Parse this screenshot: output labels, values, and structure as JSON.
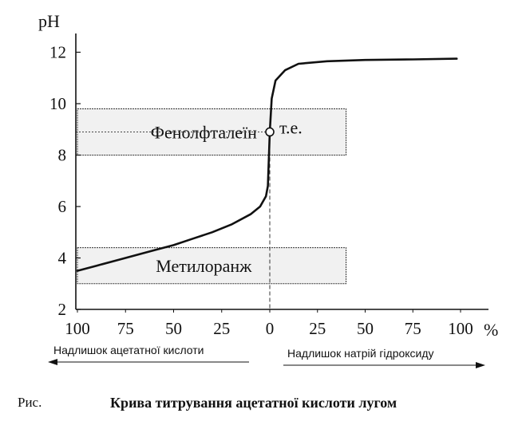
{
  "chart_data": {
    "type": "line",
    "ylabel": "pH",
    "x_unit": "%",
    "xticks": [
      "100",
      "75",
      "50",
      "25",
      "0",
      "25",
      "50",
      "75",
      "100"
    ],
    "xtick_values": [
      -100,
      -75,
      -50,
      -25,
      0,
      25,
      50,
      75,
      100
    ],
    "yticks": [
      "2",
      "4",
      "6",
      "8",
      "10",
      "12"
    ],
    "ytick_values": [
      2,
      4,
      6,
      8,
      10,
      12
    ],
    "xlim": [
      -105,
      110
    ],
    "ylim": [
      0,
      13.5
    ],
    "grid": false,
    "series": [
      {
        "points": [
          [
            -100,
            3.5
          ],
          [
            -90,
            3.7
          ],
          [
            -80,
            3.9
          ],
          [
            -70,
            4.1
          ],
          [
            -60,
            4.3
          ],
          [
            -50,
            4.5
          ],
          [
            -40,
            4.75
          ],
          [
            -30,
            5.0
          ],
          [
            -20,
            5.3
          ],
          [
            -10,
            5.7
          ],
          [
            -5,
            6.0
          ],
          [
            -2,
            6.4
          ],
          [
            -1,
            6.8
          ],
          [
            0,
            8.9
          ],
          [
            1,
            10.2
          ],
          [
            3,
            10.9
          ],
          [
            8,
            11.3
          ],
          [
            15,
            11.55
          ],
          [
            30,
            11.65
          ],
          [
            50,
            11.7
          ],
          [
            75,
            11.72
          ],
          [
            98,
            11.75
          ]
        ]
      }
    ],
    "bands": [
      {
        "label": "Фенолфталеїн",
        "from": 8.0,
        "to": 9.8,
        "x_from": -100,
        "x_to": 40
      },
      {
        "label": "Метилоранж",
        "from": 3.0,
        "to": 4.4,
        "x_from": -100,
        "x_to": 40
      }
    ],
    "equivalence_point": {
      "label": "т.е.",
      "x": 0,
      "y": 8.9
    },
    "arrows": {
      "left": "Надлишок ацетатної кислоти",
      "right": "Надлишок натрій гідроксиду"
    }
  },
  "caption": {
    "prefix": "Рис.",
    "title": "Крива титрування ацетатної кислоти лугом"
  }
}
